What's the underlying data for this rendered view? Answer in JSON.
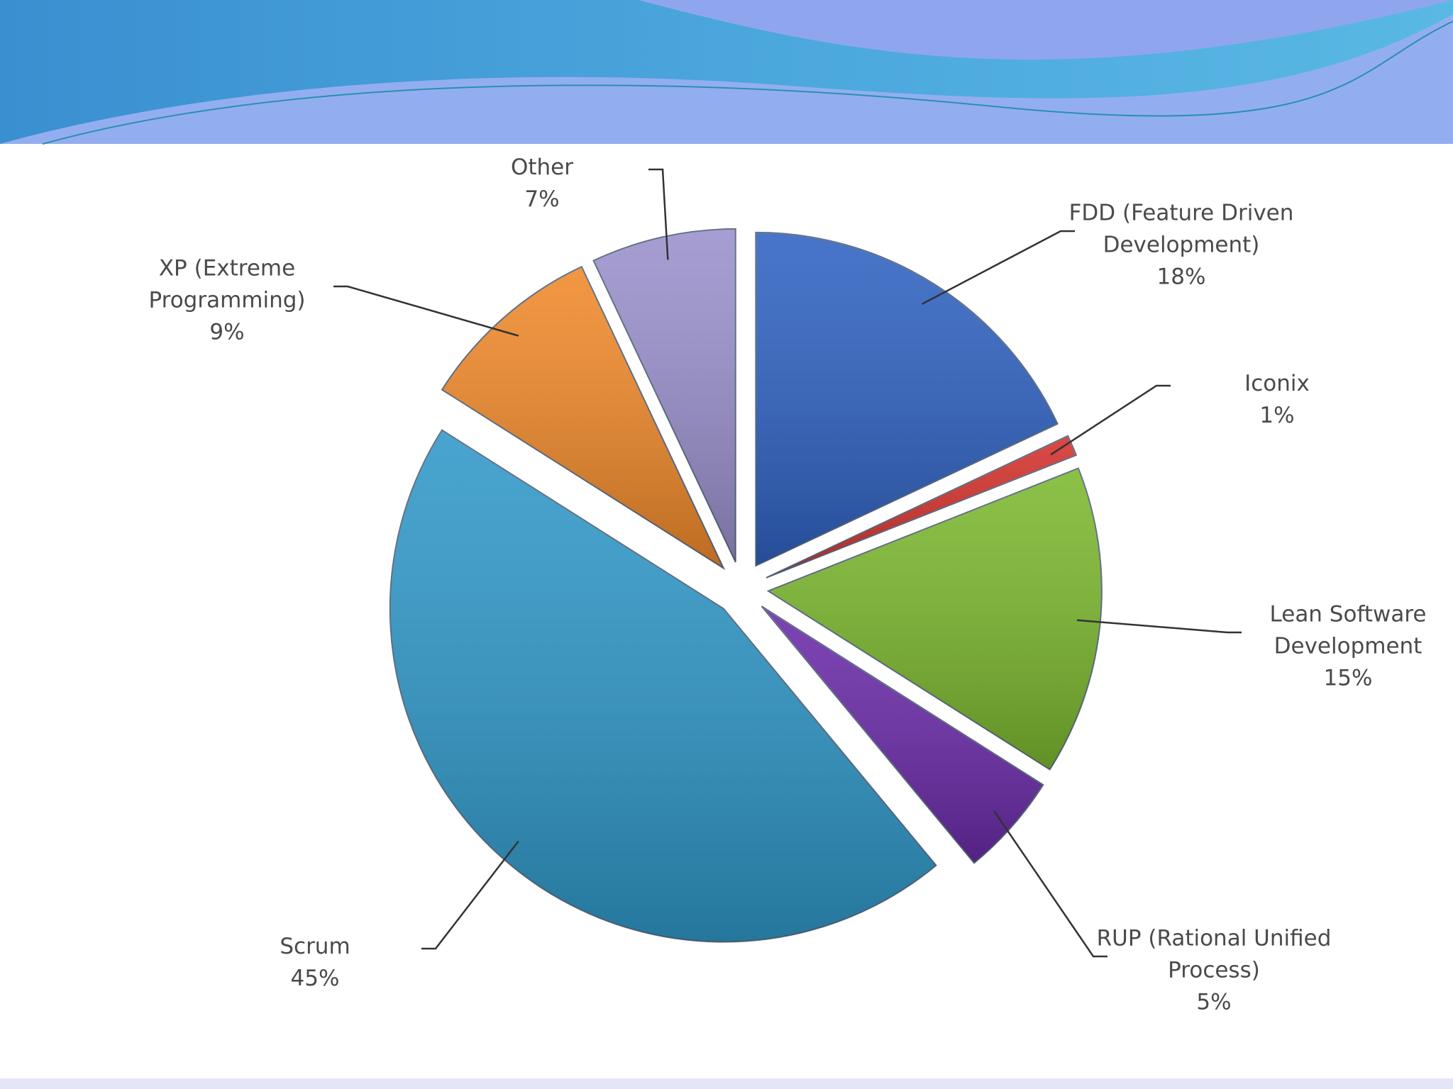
{
  "chart_data": {
    "type": "pie",
    "categories": [
      "FDD (Feature Driven Development)",
      "Iconix",
      "Lean Software Development",
      "RUP (Rational Unified Process)",
      "Scrum",
      "XP (Extreme Programming)",
      "Other"
    ],
    "values": [
      18,
      1,
      15,
      5,
      45,
      9,
      7
    ],
    "value_labels": [
      "18%",
      "1%",
      "15%",
      "5%",
      "45%",
      "9%",
      "7%"
    ],
    "colors": [
      "#2f62c2",
      "#d4302a",
      "#7cb82e",
      "#6a2aa8",
      "#2f98c8",
      "#f0892a",
      "#9a90cc"
    ]
  }
}
